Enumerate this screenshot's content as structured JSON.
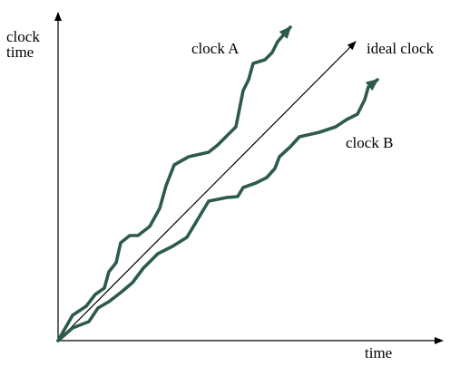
{
  "axes": {
    "y_label_line1": "clock",
    "y_label_line2": "time",
    "x_label": "time"
  },
  "curves": {
    "clock_a": {
      "label": "clock A",
      "color": "#2d5a4e"
    },
    "ideal": {
      "label": "ideal clock",
      "color": "#000000"
    },
    "clock_b": {
      "label": "clock B",
      "color": "#2d5a4e"
    }
  }
}
